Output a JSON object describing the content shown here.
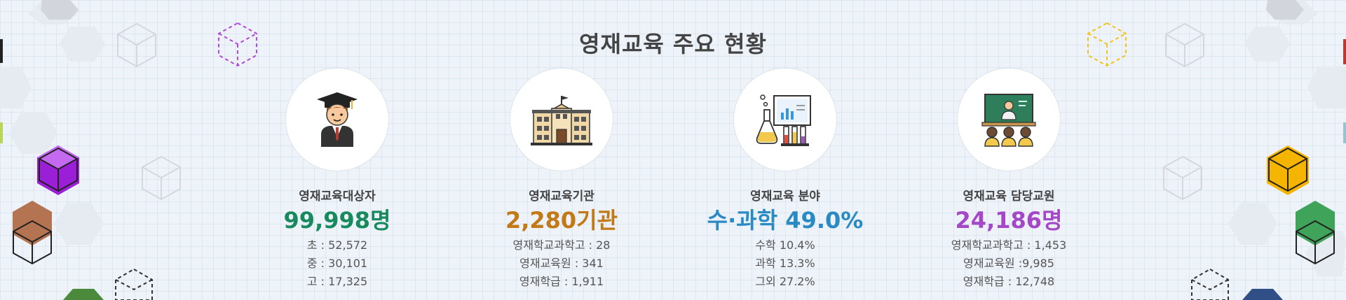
{
  "title": "영재교육 주요 현황",
  "colors": {
    "green": "#198a5e",
    "orange": "#c27a16",
    "blue": "#2a8bc4",
    "purple": "#a548c7"
  },
  "stats": [
    {
      "icon": "graduate-student-icon",
      "label": "영재교육대상자",
      "value": "99,998명",
      "details": [
        "초 : 52,572",
        "중 : 30,101",
        "고 : 17,325"
      ]
    },
    {
      "icon": "school-building-icon",
      "label": "영재교육기관",
      "value": "2,280기관",
      "details": [
        "영재학교과학고 : 28",
        "영재교육원 : 341",
        "영재학급 : 1,911"
      ]
    },
    {
      "icon": "science-lab-icon",
      "label": "영재교육 분야",
      "value": "수·과학 49.0%",
      "details": [
        "수학 10.4%",
        "과학 13.3%",
        "그외 27.2%"
      ]
    },
    {
      "icon": "classroom-teacher-icon",
      "label": "영재교육 담당교원",
      "value": "24,186명",
      "details": [
        "영재학교과학고 : 1,453",
        "영재교육원 :9,985",
        "영재학급 : 12,748"
      ]
    }
  ]
}
